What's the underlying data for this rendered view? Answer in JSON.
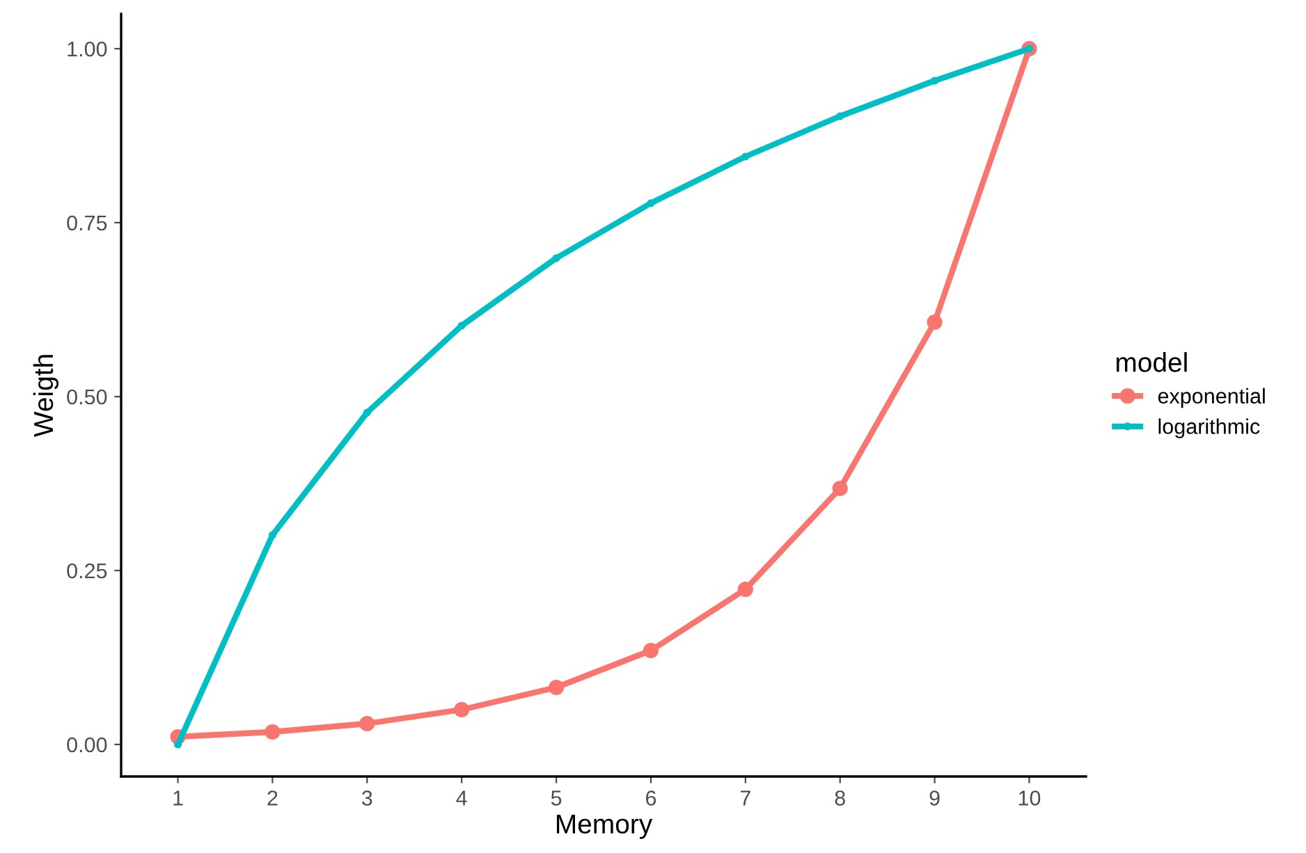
{
  "chart_data": {
    "type": "line",
    "xlabel": "Memory",
    "ylabel": "Weigth",
    "legend_title": "model",
    "x": [
      1,
      2,
      3,
      4,
      5,
      6,
      7,
      8,
      9,
      10
    ],
    "series": [
      {
        "name": "exponential",
        "color": "#f8766d",
        "values": [
          0.011,
          0.018,
          0.03,
          0.05,
          0.082,
          0.135,
          0.223,
          0.368,
          0.607,
          1.0
        ]
      },
      {
        "name": "logarithmic",
        "color": "#00bfc4",
        "values": [
          0.0,
          0.301,
          0.477,
          0.602,
          0.699,
          0.778,
          0.845,
          0.903,
          0.954,
          1.0
        ]
      }
    ],
    "xlim": [
      0.4,
      10.6
    ],
    "xticks": [
      1,
      2,
      3,
      4,
      5,
      6,
      7,
      8,
      9,
      10
    ],
    "ylim": [
      -0.046,
      1.05
    ],
    "yticks": [
      {
        "value": 0,
        "label": "0.00"
      },
      {
        "value": 0.25,
        "label": "0.25"
      },
      {
        "value": 0.5,
        "label": "0.50"
      },
      {
        "value": 0.75,
        "label": "0.75"
      },
      {
        "value": 1.0,
        "label": "1.00"
      }
    ],
    "grid": false,
    "legend": "right",
    "marker": "circle",
    "line_style": "solid"
  }
}
